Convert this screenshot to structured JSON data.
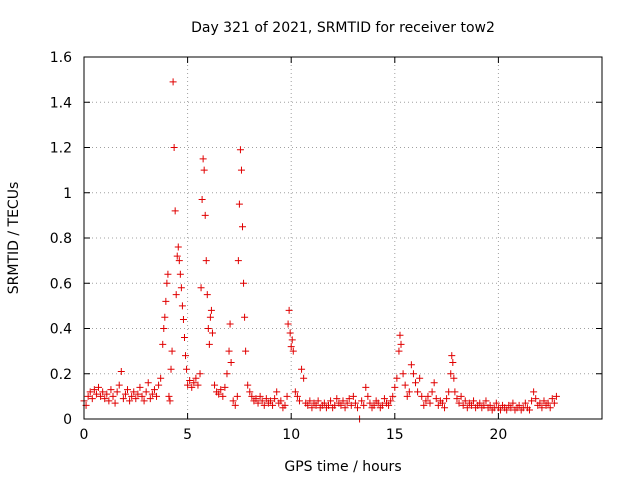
{
  "chart_data": {
    "type": "scatter",
    "title": "Day 321 of 2021, SRMTID for receiver tow2",
    "xlabel": "GPS time / hours",
    "ylabel": "SRMTID / TECUs",
    "xlim": [
      0,
      25
    ],
    "ylim": [
      0,
      1.6
    ],
    "xticks": [
      0,
      5,
      10,
      15,
      20
    ],
    "xtick_labels": [
      "0",
      "5",
      "10",
      "15",
      "20"
    ],
    "yticks": [
      0,
      0.2,
      0.4,
      0.6,
      0.8,
      1,
      1.2,
      1.4,
      1.6
    ],
    "ytick_labels": [
      "0",
      "0.2",
      "0.4",
      "0.6",
      "0.8",
      "1",
      "1.2",
      "1.4",
      "1.6"
    ],
    "grid": true,
    "marker": "plus",
    "series": [
      {
        "name": "SRMTID",
        "color": "#e00000",
        "points": [
          [
            0.0,
            0.08
          ],
          [
            0.1,
            0.06
          ],
          [
            0.2,
            0.1
          ],
          [
            0.3,
            0.12
          ],
          [
            0.4,
            0.09
          ],
          [
            0.5,
            0.13
          ],
          [
            0.6,
            0.11
          ],
          [
            0.7,
            0.14
          ],
          [
            0.8,
            0.1
          ],
          [
            0.9,
            0.12
          ],
          [
            1.0,
            0.09
          ],
          [
            1.1,
            0.11
          ],
          [
            1.2,
            0.08
          ],
          [
            1.3,
            0.13
          ],
          [
            1.4,
            0.1
          ],
          [
            1.5,
            0.07
          ],
          [
            1.6,
            0.12
          ],
          [
            1.7,
            0.15
          ],
          [
            1.8,
            0.21
          ],
          [
            1.9,
            0.09
          ],
          [
            2.0,
            0.11
          ],
          [
            2.1,
            0.13
          ],
          [
            2.2,
            0.08
          ],
          [
            2.3,
            0.1
          ],
          [
            2.4,
            0.12
          ],
          [
            2.5,
            0.09
          ],
          [
            2.6,
            0.11
          ],
          [
            2.7,
            0.14
          ],
          [
            2.8,
            0.1
          ],
          [
            2.9,
            0.08
          ],
          [
            3.0,
            0.12
          ],
          [
            3.1,
            0.16
          ],
          [
            3.2,
            0.09
          ],
          [
            3.3,
            0.11
          ],
          [
            3.4,
            0.13
          ],
          [
            3.5,
            0.1
          ],
          [
            3.6,
            0.15
          ],
          [
            3.7,
            0.18
          ],
          [
            3.8,
            0.33
          ],
          [
            3.85,
            0.4
          ],
          [
            3.9,
            0.45
          ],
          [
            3.95,
            0.52
          ],
          [
            4.0,
            0.6
          ],
          [
            4.05,
            0.64
          ],
          [
            4.1,
            0.1
          ],
          [
            4.15,
            0.08
          ],
          [
            4.2,
            0.22
          ],
          [
            4.25,
            0.3
          ],
          [
            4.3,
            1.49
          ],
          [
            4.35,
            1.2
          ],
          [
            4.4,
            0.92
          ],
          [
            4.45,
            0.55
          ],
          [
            4.5,
            0.72
          ],
          [
            4.55,
            0.76
          ],
          [
            4.6,
            0.7
          ],
          [
            4.65,
            0.64
          ],
          [
            4.7,
            0.58
          ],
          [
            4.75,
            0.5
          ],
          [
            4.8,
            0.44
          ],
          [
            4.85,
            0.36
          ],
          [
            4.9,
            0.28
          ],
          [
            4.95,
            0.22
          ],
          [
            5.0,
            0.15
          ],
          [
            5.1,
            0.17
          ],
          [
            5.2,
            0.14
          ],
          [
            5.3,
            0.16
          ],
          [
            5.4,
            0.18
          ],
          [
            5.5,
            0.15
          ],
          [
            5.6,
            0.2
          ],
          [
            5.65,
            0.58
          ],
          [
            5.7,
            0.97
          ],
          [
            5.75,
            1.15
          ],
          [
            5.8,
            1.1
          ],
          [
            5.85,
            0.9
          ],
          [
            5.9,
            0.7
          ],
          [
            5.95,
            0.55
          ],
          [
            6.0,
            0.4
          ],
          [
            6.05,
            0.33
          ],
          [
            6.1,
            0.45
          ],
          [
            6.15,
            0.48
          ],
          [
            6.2,
            0.38
          ],
          [
            6.3,
            0.15
          ],
          [
            6.4,
            0.12
          ],
          [
            6.5,
            0.11
          ],
          [
            6.6,
            0.13
          ],
          [
            6.7,
            0.1
          ],
          [
            6.8,
            0.14
          ],
          [
            6.9,
            0.2
          ],
          [
            7.0,
            0.3
          ],
          [
            7.05,
            0.42
          ],
          [
            7.1,
            0.25
          ],
          [
            7.2,
            0.08
          ],
          [
            7.3,
            0.06
          ],
          [
            7.4,
            0.1
          ],
          [
            7.45,
            0.7
          ],
          [
            7.5,
            0.95
          ],
          [
            7.55,
            1.19
          ],
          [
            7.6,
            1.1
          ],
          [
            7.65,
            0.85
          ],
          [
            7.7,
            0.6
          ],
          [
            7.75,
            0.45
          ],
          [
            7.8,
            0.3
          ],
          [
            7.9,
            0.15
          ],
          [
            8.0,
            0.12
          ],
          [
            8.1,
            0.1
          ],
          [
            8.2,
            0.08
          ],
          [
            8.3,
            0.09
          ],
          [
            8.4,
            0.07
          ],
          [
            8.5,
            0.1
          ],
          [
            8.6,
            0.08
          ],
          [
            8.7,
            0.06
          ],
          [
            8.8,
            0.09
          ],
          [
            8.9,
            0.07
          ],
          [
            9.0,
            0.08
          ],
          [
            9.1,
            0.06
          ],
          [
            9.2,
            0.09
          ],
          [
            9.3,
            0.12
          ],
          [
            9.4,
            0.07
          ],
          [
            9.5,
            0.08
          ],
          [
            9.6,
            0.05
          ],
          [
            9.7,
            0.06
          ],
          [
            9.8,
            0.1
          ],
          [
            9.85,
            0.42
          ],
          [
            9.9,
            0.48
          ],
          [
            9.95,
            0.38
          ],
          [
            10.0,
            0.32
          ],
          [
            10.05,
            0.35
          ],
          [
            10.1,
            0.3
          ],
          [
            10.2,
            0.12
          ],
          [
            10.3,
            0.1
          ],
          [
            10.4,
            0.08
          ],
          [
            10.5,
            0.22
          ],
          [
            10.6,
            0.18
          ],
          [
            10.7,
            0.07
          ],
          [
            10.8,
            0.06
          ],
          [
            10.9,
            0.08
          ],
          [
            11.0,
            0.05
          ],
          [
            11.1,
            0.07
          ],
          [
            11.2,
            0.06
          ],
          [
            11.3,
            0.08
          ],
          [
            11.4,
            0.05
          ],
          [
            11.5,
            0.06
          ],
          [
            11.6,
            0.07
          ],
          [
            11.7,
            0.05
          ],
          [
            11.8,
            0.06
          ],
          [
            11.9,
            0.08
          ],
          [
            12.0,
            0.05
          ],
          [
            12.1,
            0.06
          ],
          [
            12.2,
            0.09
          ],
          [
            12.3,
            0.07
          ],
          [
            12.4,
            0.06
          ],
          [
            12.5,
            0.08
          ],
          [
            12.6,
            0.05
          ],
          [
            12.7,
            0.07
          ],
          [
            12.8,
            0.09
          ],
          [
            12.9,
            0.06
          ],
          [
            13.0,
            0.1
          ],
          [
            13.1,
            0.07
          ],
          [
            13.2,
            0.05
          ],
          [
            13.3,
            0.0
          ],
          [
            13.4,
            0.08
          ],
          [
            13.5,
            0.06
          ],
          [
            13.6,
            0.14
          ],
          [
            13.7,
            0.1
          ],
          [
            13.8,
            0.07
          ],
          [
            13.9,
            0.05
          ],
          [
            14.0,
            0.06
          ],
          [
            14.1,
            0.08
          ],
          [
            14.2,
            0.07
          ],
          [
            14.3,
            0.05
          ],
          [
            14.4,
            0.06
          ],
          [
            14.5,
            0.09
          ],
          [
            14.6,
            0.07
          ],
          [
            14.7,
            0.06
          ],
          [
            14.8,
            0.08
          ],
          [
            14.9,
            0.1
          ],
          [
            15.0,
            0.14
          ],
          [
            15.1,
            0.18
          ],
          [
            15.2,
            0.3
          ],
          [
            15.25,
            0.37
          ],
          [
            15.3,
            0.33
          ],
          [
            15.4,
            0.2
          ],
          [
            15.5,
            0.15
          ],
          [
            15.6,
            0.1
          ],
          [
            15.7,
            0.12
          ],
          [
            15.8,
            0.24
          ],
          [
            15.9,
            0.2
          ],
          [
            16.0,
            0.16
          ],
          [
            16.1,
            0.12
          ],
          [
            16.2,
            0.18
          ],
          [
            16.3,
            0.1
          ],
          [
            16.4,
            0.06
          ],
          [
            16.5,
            0.08
          ],
          [
            16.6,
            0.1
          ],
          [
            16.7,
            0.07
          ],
          [
            16.8,
            0.12
          ],
          [
            16.9,
            0.16
          ],
          [
            17.0,
            0.09
          ],
          [
            17.1,
            0.06
          ],
          [
            17.2,
            0.08
          ],
          [
            17.3,
            0.07
          ],
          [
            17.4,
            0.05
          ],
          [
            17.5,
            0.09
          ],
          [
            17.6,
            0.12
          ],
          [
            17.7,
            0.2
          ],
          [
            17.75,
            0.28
          ],
          [
            17.8,
            0.25
          ],
          [
            17.85,
            0.18
          ],
          [
            17.9,
            0.12
          ],
          [
            18.0,
            0.09
          ],
          [
            18.1,
            0.07
          ],
          [
            18.2,
            0.1
          ],
          [
            18.3,
            0.06
          ],
          [
            18.4,
            0.08
          ],
          [
            18.5,
            0.05
          ],
          [
            18.6,
            0.07
          ],
          [
            18.7,
            0.06
          ],
          [
            18.8,
            0.08
          ],
          [
            18.9,
            0.05
          ],
          [
            19.0,
            0.06
          ],
          [
            19.1,
            0.07
          ],
          [
            19.2,
            0.05
          ],
          [
            19.3,
            0.06
          ],
          [
            19.4,
            0.08
          ],
          [
            19.5,
            0.05
          ],
          [
            19.6,
            0.06
          ],
          [
            19.7,
            0.04
          ],
          [
            19.8,
            0.05
          ],
          [
            19.9,
            0.07
          ],
          [
            20.0,
            0.05
          ],
          [
            20.1,
            0.04
          ],
          [
            20.2,
            0.06
          ],
          [
            20.3,
            0.05
          ],
          [
            20.4,
            0.04
          ],
          [
            20.5,
            0.06
          ],
          [
            20.6,
            0.05
          ],
          [
            20.7,
            0.07
          ],
          [
            20.8,
            0.04
          ],
          [
            20.9,
            0.05
          ],
          [
            21.0,
            0.06
          ],
          [
            21.1,
            0.04
          ],
          [
            21.2,
            0.05
          ],
          [
            21.3,
            0.07
          ],
          [
            21.4,
            0.05
          ],
          [
            21.5,
            0.04
          ],
          [
            21.6,
            0.08
          ],
          [
            21.7,
            0.12
          ],
          [
            21.8,
            0.09
          ],
          [
            21.9,
            0.06
          ],
          [
            22.0,
            0.07
          ],
          [
            22.1,
            0.05
          ],
          [
            22.2,
            0.08
          ],
          [
            22.3,
            0.06
          ],
          [
            22.4,
            0.07
          ],
          [
            22.5,
            0.05
          ],
          [
            22.6,
            0.09
          ],
          [
            22.7,
            0.07
          ],
          [
            22.8,
            0.1
          ]
        ]
      }
    ]
  }
}
